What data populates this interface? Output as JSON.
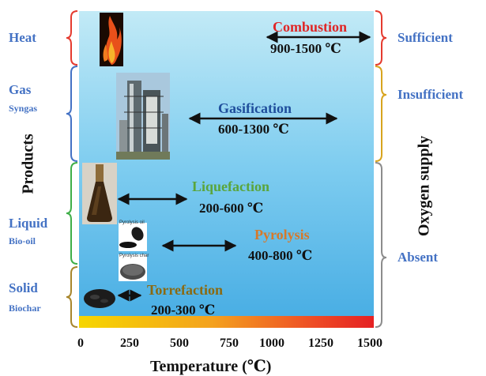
{
  "processes": [
    {
      "key": "combustion",
      "name": "Combustion",
      "range": "900-1500 ℃",
      "color": "#e02626"
    },
    {
      "key": "gasification",
      "name": "Gasification",
      "range": "600-1300 ℃",
      "color": "#1f4e9c"
    },
    {
      "key": "liquefaction",
      "name": "Liquefaction",
      "range": "200-600 ℃",
      "color": "#5aa53c"
    },
    {
      "key": "pyrolysis",
      "name": "Pyrolysis",
      "range": "400-800 ℃",
      "color": "#d6792a"
    },
    {
      "key": "torrefaction",
      "name": "Torrefaction",
      "range": "200-300 ℃",
      "color": "#8a6a12"
    }
  ],
  "products": {
    "title": "Products",
    "heat": "Heat",
    "gas": "Gas",
    "syngas": "Syngas",
    "liquid": "Liquid",
    "bio_oil": "Bio-oil",
    "solid": "Solid",
    "biochar": "Biochar"
  },
  "oxygen": {
    "title": "Oxygen supply",
    "sufficient": "Sufficient",
    "insufficient": "Insufficient",
    "absent": "Absent"
  },
  "photo_captions": {
    "pyrolysis_oil": "Pyrolysis oil",
    "pyrolysis_char": "Pyrolysis char"
  },
  "axis": {
    "xlabel": "Temperature (℃)",
    "ticks": [
      "0",
      "250",
      "500",
      "750",
      "1000",
      "1250",
      "1500"
    ]
  },
  "colors": {
    "heat_brace": "#e53b2f",
    "gas_brace": "#4472c4",
    "liquid_brace": "#3fae48",
    "solid_brace": "#a8862c",
    "oxygen_sufficient_brace": "#e53b2f",
    "oxygen_insufficient_brace": "#d8a41e",
    "oxygen_absent_brace": "#8c8c8c",
    "side_text": "#4472c4"
  }
}
